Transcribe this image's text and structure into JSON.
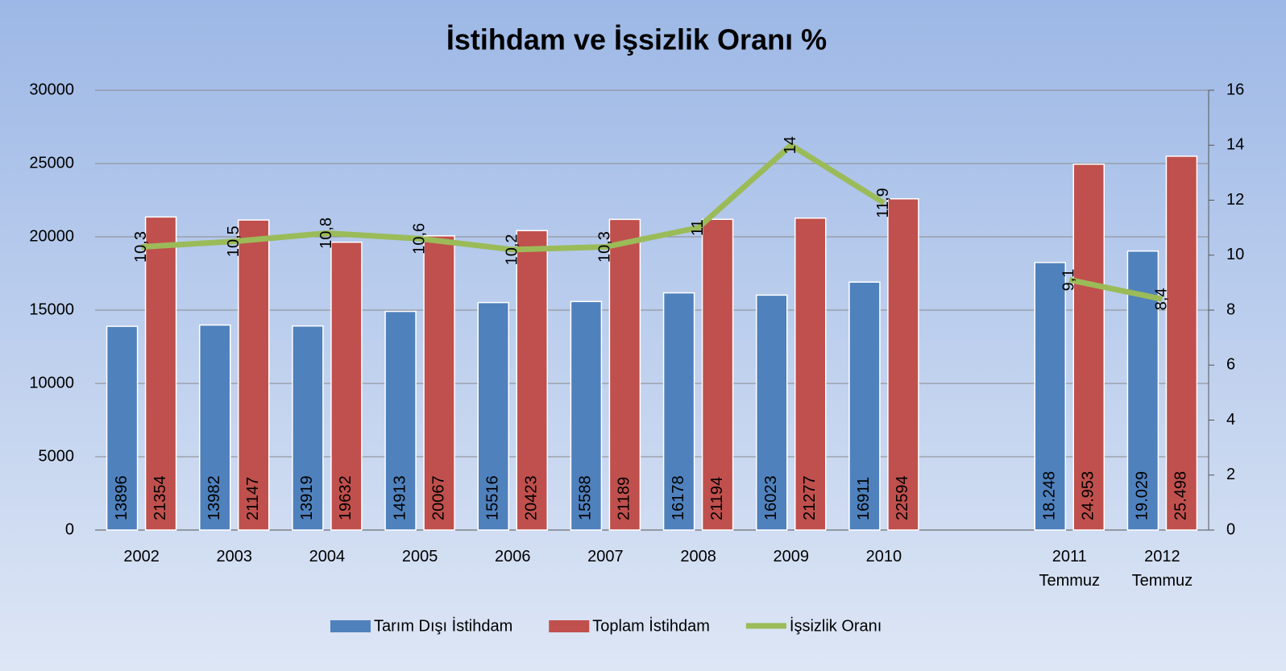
{
  "chart_data": {
    "type": "bar",
    "title": "İstihdam ve İşsizlik Oranı %",
    "categories": [
      "2002",
      "2003",
      "2004",
      "2005",
      "2006",
      "2007",
      "2008",
      "2009",
      "2010",
      null,
      "2011 Temmuz",
      "2012 Temmuz"
    ],
    "series": [
      {
        "name": "Tarım Dışı İstihdam",
        "color": "#4f81bd",
        "type": "bar",
        "values": [
          13896,
          13982,
          13919,
          14913,
          15516,
          15588,
          16178,
          16023,
          16911,
          null,
          18248,
          19029
        ],
        "value_labels": [
          "13896",
          "13982",
          "13919",
          "14913",
          "15516",
          "15588",
          "16178",
          "16023",
          "16911",
          null,
          "18.248",
          "19.029"
        ]
      },
      {
        "name": "Toplam İstihdam",
        "color": "#c0504d",
        "type": "bar",
        "values": [
          21354,
          21147,
          19632,
          20067,
          20423,
          21189,
          21194,
          21277,
          22594,
          null,
          24953,
          25498
        ],
        "value_labels": [
          "21354",
          "21147",
          "19632",
          "20067",
          "20423",
          "21189",
          "21194",
          "21277",
          "22594",
          null,
          "24.953",
          "25.498"
        ]
      },
      {
        "name": "İşsizlik Oranı",
        "color": "#9bbb59",
        "type": "line",
        "axis": "y2",
        "values": [
          10.3,
          10.5,
          10.8,
          10.6,
          10.2,
          10.3,
          11,
          14,
          11.9,
          null,
          9.1,
          8.4
        ],
        "value_labels": [
          "10,3",
          "10,5",
          "10,8",
          "10,6",
          "10,2",
          "10,3",
          "11",
          "14",
          "11,9",
          null,
          "9,1",
          "8,4"
        ]
      }
    ],
    "ylim": [
      0,
      30000
    ],
    "yticks": [
      0,
      5000,
      10000,
      15000,
      20000,
      25000,
      30000
    ],
    "y2lim": [
      0,
      16
    ],
    "y2ticks": [
      0,
      2,
      4,
      6,
      8,
      10,
      12,
      14,
      16
    ],
    "grid": true,
    "legend": "bottom"
  }
}
